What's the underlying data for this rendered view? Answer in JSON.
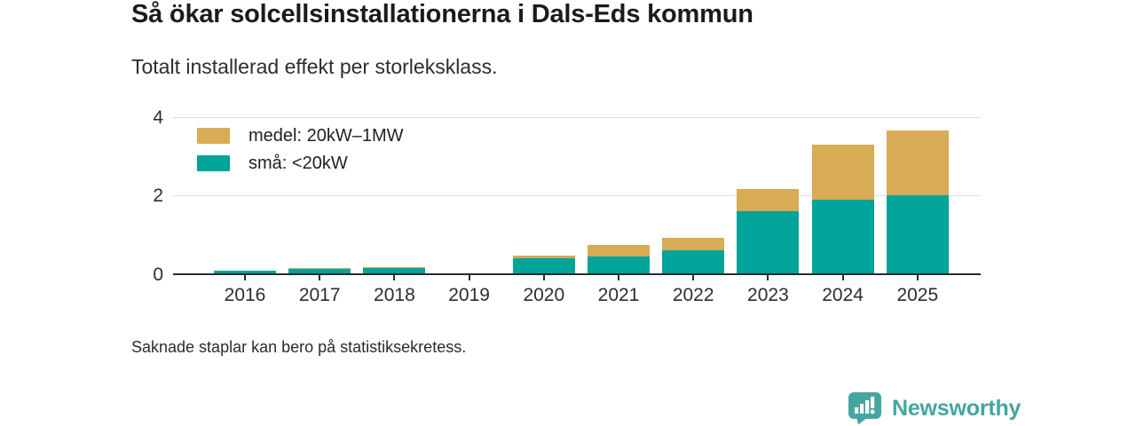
{
  "header": {
    "title": "Så ökar solcellsinstallationerna i Dals-Eds kommun",
    "subtitle": "Totalt installerad effekt per storleksklass."
  },
  "colors": {
    "small": "#00a49a",
    "medium": "#d8ab55",
    "brand": "#45a5a0",
    "gridline": "#dcdcdc",
    "axis": "#2b2b2b"
  },
  "chart_data": {
    "type": "bar",
    "stacked": true,
    "title": "Så ökar solcellsinstallationerna i Dals-Eds kommun",
    "subtitle": "Totalt installerad effekt per storleksklass.",
    "categories": [
      "2016",
      "2017",
      "2018",
      "2019",
      "2020",
      "2021",
      "2022",
      "2023",
      "2024",
      "2025"
    ],
    "series": [
      {
        "name": "medel: 20kW–1MW",
        "color_key": "medium",
        "values": [
          0,
          0.02,
          0.02,
          null,
          0.08,
          0.3,
          0.33,
          0.57,
          1.4,
          1.65
        ]
      },
      {
        "name": "små: <20kW",
        "color_key": "small",
        "values": [
          0.1,
          0.13,
          0.17,
          null,
          0.4,
          0.45,
          0.6,
          1.6,
          1.9,
          2.02
        ]
      }
    ],
    "xlabel": "",
    "ylabel": "",
    "ylim": [
      0,
      4
    ],
    "yticks": [
      0,
      2,
      4
    ],
    "grid": true,
    "legend_position": "top-left",
    "missing_data_note": "Saknade staplar kan bero på statistiksekretess."
  },
  "footer": {
    "note": "Saknade staplar kan bero på statistiksekretess.",
    "brand": "Newsworthy"
  }
}
